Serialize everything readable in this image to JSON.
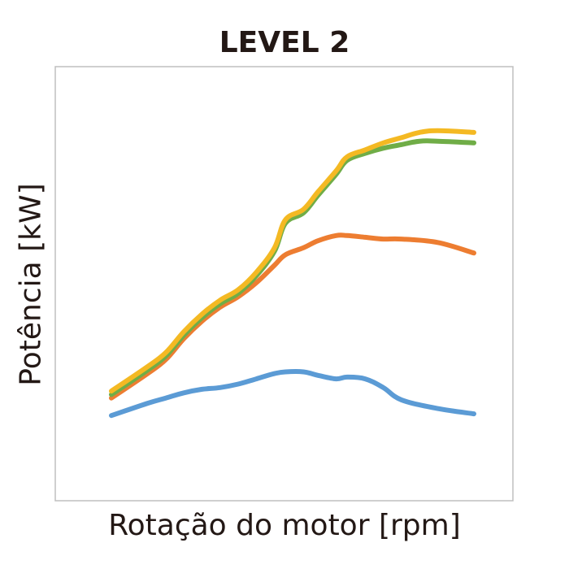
{
  "chart_data": {
    "type": "line",
    "title": "LEVEL 2",
    "xlabel": "Rotação do motor [rpm]",
    "ylabel": "Potência [kW]",
    "xlim": [
      0,
      100
    ],
    "ylim": [
      0,
      100
    ],
    "grid": false,
    "ticks_shown": false,
    "legend": "none",
    "series": [
      {
        "color": "#5b9bd5",
        "x": [
          0,
          10,
          15,
          20,
          25,
          30,
          35,
          40,
          45,
          48,
          53,
          57,
          62,
          65,
          70,
          75,
          80,
          90,
          100
        ],
        "y": [
          16,
          19.5,
          21,
          22.5,
          23.5,
          24,
          25,
          26.5,
          28,
          28.5,
          28.5,
          27.5,
          26.5,
          27,
          26.5,
          24,
          20.5,
          18,
          16.5
        ]
      },
      {
        "color": "#ed7d31",
        "x": [
          0,
          10,
          15,
          20,
          25,
          30,
          35,
          40,
          45,
          48,
          53,
          57,
          62,
          65,
          70,
          75,
          80,
          90,
          100
        ],
        "y": [
          21,
          28,
          32,
          38,
          43,
          47,
          50,
          54,
          59,
          62,
          64,
          66,
          67.5,
          67.5,
          67,
          66.5,
          66.5,
          65.5,
          62.5
        ]
      },
      {
        "color": "#70ad47",
        "x": [
          0,
          10,
          15,
          20,
          25,
          30,
          35,
          40,
          45,
          48,
          53,
          57,
          62,
          65,
          70,
          75,
          80,
          85,
          90,
          100
        ],
        "y": [
          22,
          29,
          33,
          39,
          44,
          48,
          51,
          56,
          63,
          71,
          74,
          79,
          85,
          89,
          91,
          92.5,
          93.5,
          94.5,
          94.5,
          94
        ]
      },
      {
        "color": "#f4b923",
        "x": [
          0,
          10,
          15,
          20,
          25,
          30,
          35,
          40,
          45,
          48,
          53,
          57,
          62,
          65,
          70,
          75,
          80,
          85,
          90,
          100
        ],
        "y": [
          23,
          30,
          34,
          40,
          45,
          49,
          52,
          57,
          64,
          72,
          75,
          80,
          86,
          90,
          92,
          94,
          95.5,
          97,
          97.5,
          97
        ]
      }
    ]
  }
}
